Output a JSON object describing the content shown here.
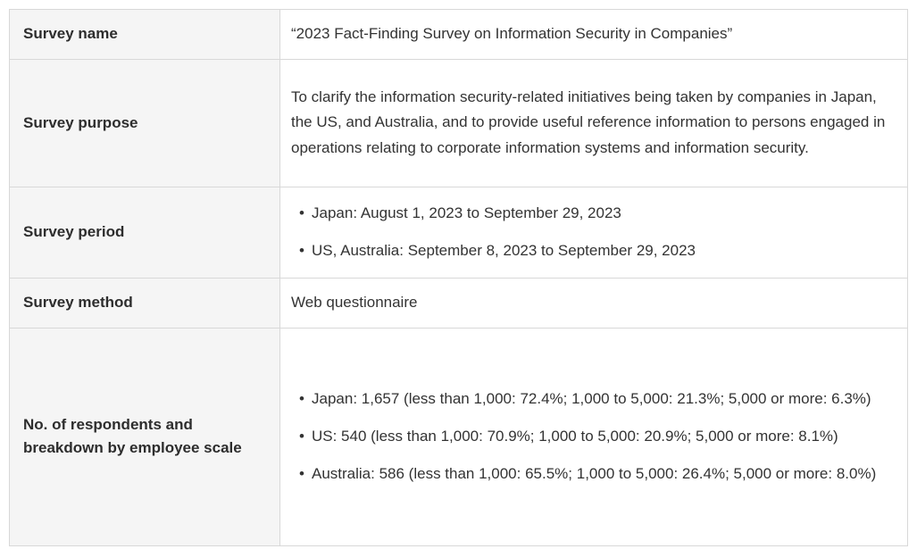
{
  "table": {
    "rows": [
      {
        "label": "Survey name",
        "text": "“2023 Fact-Finding Survey on Information Security in Companies”"
      },
      {
        "label": "Survey purpose",
        "text": "To clarify the information security-related initiatives being taken by companies in Japan, the US, and Australia, and to provide useful reference information to persons engaged in operations relating to corporate information systems and information security."
      },
      {
        "label": "Survey period",
        "items": [
          "Japan: August 1, 2023 to September 29, 2023",
          "US, Australia: September 8, 2023 to September 29, 2023"
        ]
      },
      {
        "label": "Survey method",
        "text": "Web questionnaire"
      },
      {
        "label": "No. of respondents and breakdown by employee scale",
        "items": [
          "Japan: 1,657 (less than 1,000: 72.4%; 1,000 to 5,000: 21.3%; 5,000 or more: 6.3%)",
          "US: 540 (less than 1,000: 70.9%; 1,000 to 5,000: 20.9%; 5,000 or more: 8.1%)",
          "Australia: 586 (less than 1,000: 65.5%; 1,000 to 5,000: 26.4%; 5,000 or more: 8.0%)"
        ]
      }
    ],
    "colors": {
      "header_cell_bg": "#f5f5f5",
      "border": "#d8d8d8",
      "text": "#333333"
    }
  }
}
